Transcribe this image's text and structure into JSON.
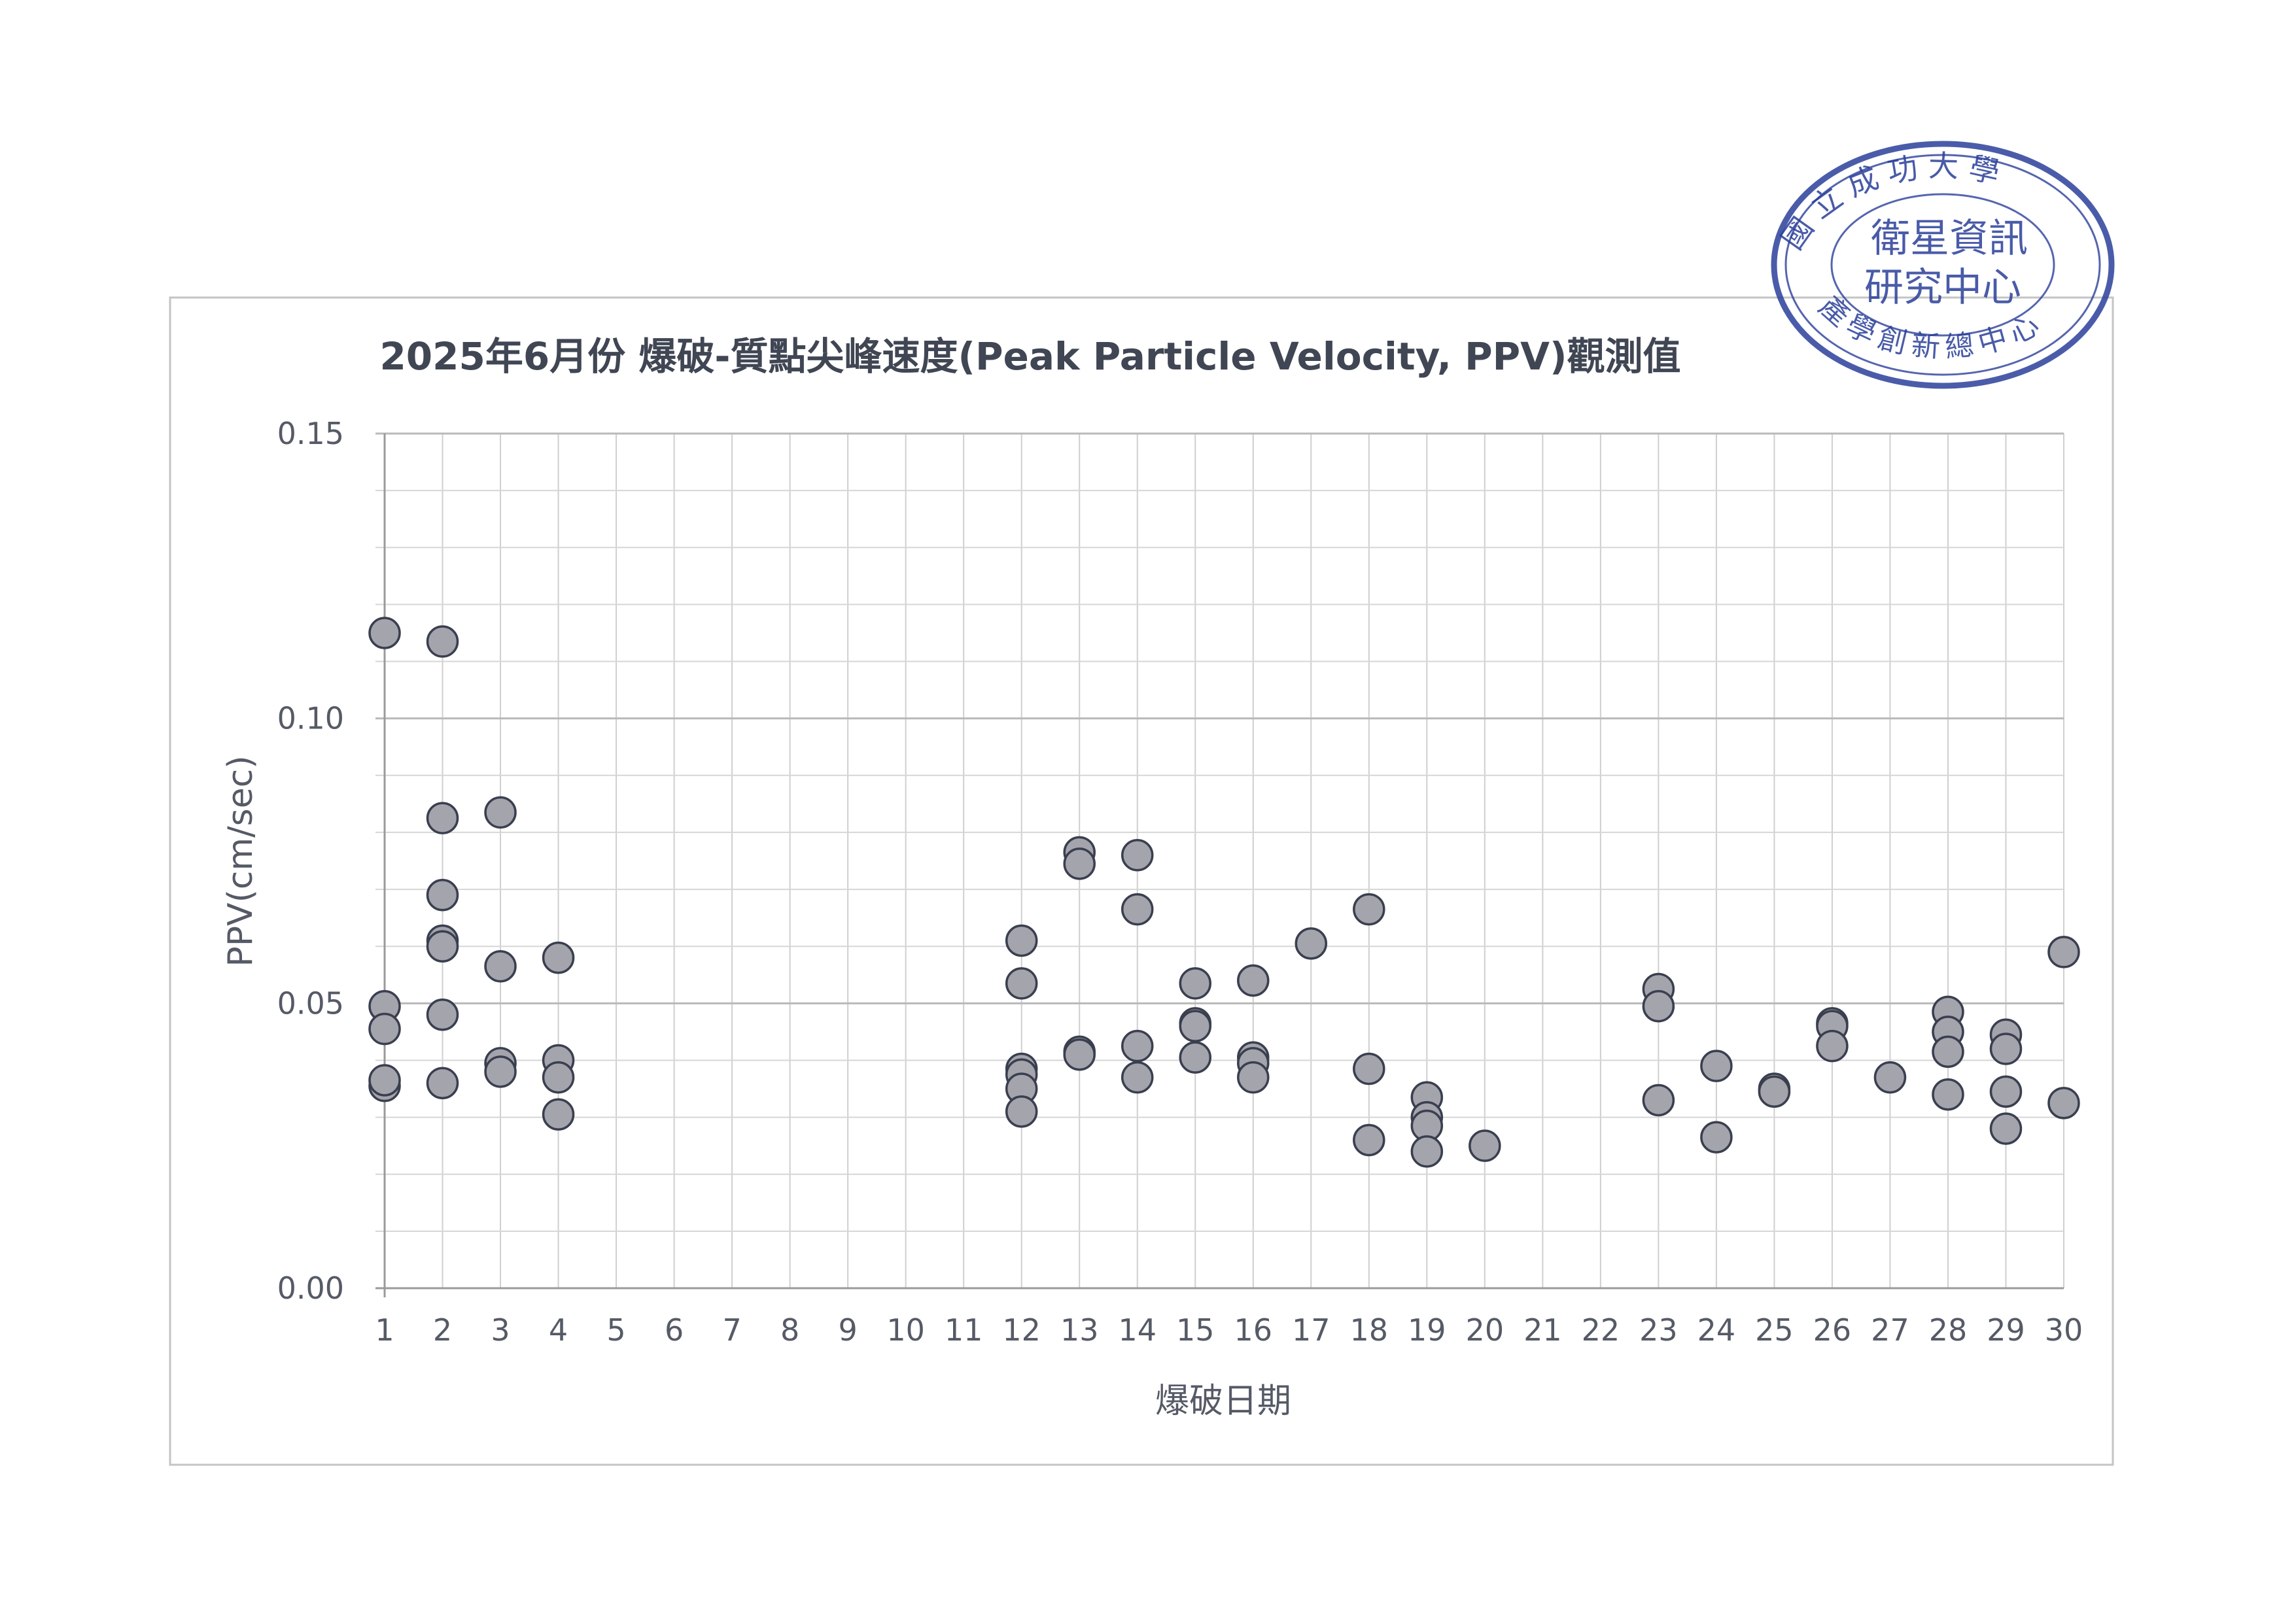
{
  "chart_data": {
    "type": "scatter",
    "title": "2025年6月份 爆破-質點尖峰速度(Peak Particle Velocity, PPV)觀測值",
    "xlabel": "爆破日期",
    "ylabel": "PPV(cm/sec)",
    "x_categories": [
      "1",
      "2",
      "3",
      "4",
      "5",
      "6",
      "7",
      "8",
      "9",
      "10",
      "11",
      "12",
      "13",
      "14",
      "15",
      "16",
      "17",
      "18",
      "19",
      "20",
      "21",
      "22",
      "23",
      "24",
      "25",
      "26",
      "27",
      "28",
      "29",
      "30"
    ],
    "ylim": [
      0,
      0.15
    ],
    "yticks": [
      0.15,
      0.1,
      0.05,
      0.0
    ],
    "ytick_labels": [
      "0.15",
      "0.10",
      "0.05",
      "0.00"
    ],
    "grid": true,
    "marker_color": "#a4a4ad",
    "marker_edge_color": "#3a3f4f",
    "series": [
      {
        "points": [
          [
            1,
            0.115
          ],
          [
            1,
            0.0495
          ],
          [
            1,
            0.0455
          ],
          [
            1,
            0.0355
          ],
          [
            1,
            0.0365
          ],
          [
            2,
            0.1135
          ],
          [
            2,
            0.0825
          ],
          [
            2,
            0.069
          ],
          [
            2,
            0.061
          ],
          [
            2,
            0.06
          ],
          [
            2,
            0.048
          ],
          [
            2,
            0.036
          ],
          [
            3,
            0.0835
          ],
          [
            3,
            0.0565
          ],
          [
            3,
            0.0395
          ],
          [
            3,
            0.038
          ],
          [
            4,
            0.058
          ],
          [
            4,
            0.04
          ],
          [
            4,
            0.037
          ],
          [
            4,
            0.0305
          ],
          [
            12,
            0.061
          ],
          [
            12,
            0.0535
          ],
          [
            12,
            0.0385
          ],
          [
            12,
            0.0375
          ],
          [
            12,
            0.035
          ],
          [
            12,
            0.031
          ],
          [
            13,
            0.0765
          ],
          [
            13,
            0.0745
          ],
          [
            13,
            0.0415
          ],
          [
            13,
            0.041
          ],
          [
            14,
            0.076
          ],
          [
            14,
            0.0665
          ],
          [
            14,
            0.0425
          ],
          [
            14,
            0.037
          ],
          [
            15,
            0.0535
          ],
          [
            15,
            0.0465
          ],
          [
            15,
            0.046
          ],
          [
            15,
            0.0405
          ],
          [
            16,
            0.054
          ],
          [
            16,
            0.0405
          ],
          [
            16,
            0.0395
          ],
          [
            16,
            0.037
          ],
          [
            17,
            0.0605
          ],
          [
            18,
            0.0665
          ],
          [
            18,
            0.0385
          ],
          [
            18,
            0.026
          ],
          [
            19,
            0.0335
          ],
          [
            19,
            0.03
          ],
          [
            19,
            0.0285
          ],
          [
            19,
            0.024
          ],
          [
            20,
            0.025
          ],
          [
            23,
            0.0525
          ],
          [
            23,
            0.0495
          ],
          [
            23,
            0.033
          ],
          [
            24,
            0.039
          ],
          [
            24,
            0.0265
          ],
          [
            25,
            0.035
          ],
          [
            25,
            0.0345
          ],
          [
            26,
            0.0465
          ],
          [
            26,
            0.046
          ],
          [
            26,
            0.0425
          ],
          [
            27,
            0.037
          ],
          [
            28,
            0.0485
          ],
          [
            28,
            0.045
          ],
          [
            28,
            0.0415
          ],
          [
            28,
            0.034
          ],
          [
            29,
            0.0445
          ],
          [
            29,
            0.042
          ],
          [
            29,
            0.0345
          ],
          [
            29,
            0.028
          ],
          [
            30,
            0.059
          ],
          [
            30,
            0.0325
          ]
        ]
      }
    ]
  },
  "stamp": {
    "outer_text": "國立成功大學 產學創新總中心",
    "inner_line1": "衛星資訊",
    "inner_line2": "研究中心",
    "color": "#2a3f9a"
  }
}
